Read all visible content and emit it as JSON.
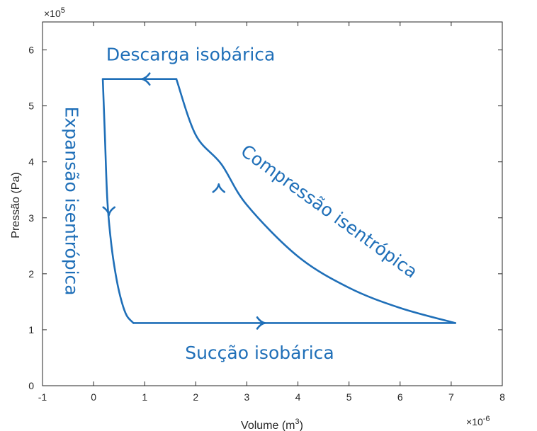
{
  "chart_data": {
    "type": "line",
    "title": "",
    "xlabel": "Volume (m",
    "xlabel_sup": "3",
    "xlabel_close": ")",
    "ylabel": "Pressão (Pa)",
    "x_exponent": "×10",
    "x_exponent_power": "-6",
    "y_exponent": "×10",
    "y_exponent_power": "5",
    "xlim": [
      -1,
      8
    ],
    "ylim": [
      0,
      6.5
    ],
    "x_scale_factor": 1e-06,
    "y_scale_factor": 100000.0,
    "xticks": [
      "-1",
      "0",
      "1",
      "2",
      "3",
      "4",
      "5",
      "6",
      "7",
      "8"
    ],
    "yticks": [
      "0",
      "1",
      "2",
      "3",
      "4",
      "5",
      "6"
    ],
    "grid": false,
    "line_color": "#1f6fb8",
    "series": [
      {
        "segment": "succao",
        "x": [
          0.78,
          7.08
        ],
        "y": [
          1.12,
          1.12
        ]
      },
      {
        "segment": "compressao",
        "x": [
          7.08,
          6.0,
          5.0,
          4.0,
          3.0,
          2.5,
          2.0,
          1.62
        ],
        "y": [
          1.12,
          1.39,
          1.75,
          2.31,
          3.23,
          3.96,
          4.48,
          5.48
        ]
      },
      {
        "segment": "descarga",
        "x": [
          1.62,
          0.18
        ],
        "y": [
          5.48,
          5.48
        ]
      },
      {
        "segment": "expansao",
        "x": [
          0.18,
          0.22,
          0.27,
          0.35,
          0.45,
          0.55,
          0.65,
          0.78
        ],
        "y": [
          5.48,
          4.5,
          3.3,
          2.5,
          1.9,
          1.5,
          1.25,
          1.12
        ]
      }
    ],
    "arrows": [
      {
        "x": 3.3,
        "y": 1.12,
        "direction": "right"
      },
      {
        "x": 1.0,
        "y": 5.48,
        "direction": "left"
      },
      {
        "x": 2.45,
        "y": 3.55,
        "direction": "up"
      },
      {
        "x": 0.3,
        "y": 3.1,
        "direction": "down"
      }
    ],
    "annotations": [
      {
        "text": "Descarga isobárica",
        "x": 1.9,
        "y": 5.9,
        "rotation": 0
      },
      {
        "text": "Compressão isentrópica",
        "x": 4.6,
        "y": 3.1,
        "rotation": 36
      },
      {
        "text": "Sucção isobárica",
        "x": 3.25,
        "y": 0.57,
        "rotation": 0
      },
      {
        "text": "Expansão isentrópica",
        "x": -0.45,
        "y": 3.3,
        "rotation": 90
      }
    ]
  }
}
